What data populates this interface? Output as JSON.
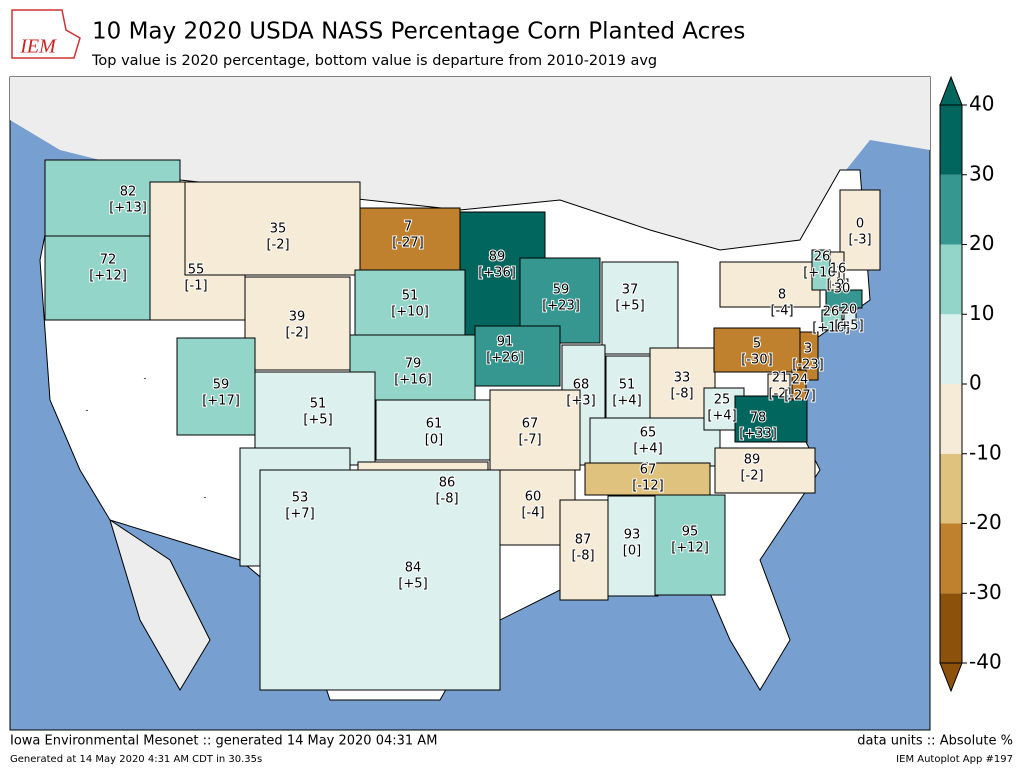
{
  "header": {
    "logo": "IEM",
    "title": "10 May 2020 USDA NASS Percentage Corn Planted Acres",
    "subtitle": "Top value is 2020 percentage, bottom value is departure from 2010-2019 avg"
  },
  "states": [
    {
      "value": 82,
      "departure": 13,
      "departure_label": "[+13]"
    },
    {
      "value": 72,
      "departure": 12,
      "departure_label": "[+12]"
    },
    {
      "value": 55,
      "departure": -1,
      "departure_label": "[-1]"
    },
    {
      "value": 35,
      "departure": -2,
      "departure_label": "[-2]"
    },
    {
      "value": 7,
      "departure": -27,
      "departure_label": "[-27]"
    },
    {
      "value": 89,
      "departure": 36,
      "departure_label": "[+36]"
    },
    {
      "value": 59,
      "departure": 23,
      "departure_label": "[+23]"
    },
    {
      "value": 37,
      "departure": 5,
      "departure_label": "[+5]"
    },
    {
      "value": 39,
      "departure": -2,
      "departure_label": "[-2]"
    },
    {
      "value": 51,
      "departure": 10,
      "departure_label": "[+10]"
    },
    {
      "value": 79,
      "departure": 16,
      "departure_label": "[+16]"
    },
    {
      "value": 91,
      "departure": 26,
      "departure_label": "[+26]"
    },
    {
      "value": 68,
      "departure": 3,
      "departure_label": "[+3]"
    },
    {
      "value": 51,
      "departure": 4,
      "departure_label": "[+4]"
    },
    {
      "value": 33,
      "departure": -8,
      "departure_label": "[-8]"
    },
    {
      "value": 8,
      "departure": -4,
      "departure_label": "[-4]"
    },
    {
      "value": 5,
      "departure": -30,
      "departure_label": "[-30]"
    },
    {
      "value": 59,
      "departure": 17,
      "departure_label": "[+17]"
    },
    {
      "value": 51,
      "departure": 5,
      "departure_label": "[+5]"
    },
    {
      "value": 61,
      "departure": 0,
      "departure_label": "[0]"
    },
    {
      "value": 67,
      "departure": -7,
      "departure_label": "[-7]"
    },
    {
      "value": 65,
      "departure": 4,
      "departure_label": "[+4]"
    },
    {
      "value": 25,
      "departure": 4,
      "departure_label": "[+4]"
    },
    {
      "value": 78,
      "departure": 33,
      "departure_label": "[+33]"
    },
    {
      "value": 3,
      "departure": -23,
      "departure_label": "[-23]"
    },
    {
      "value": 21,
      "departure": -2,
      "departure_label": "[-2]"
    },
    {
      "value": 24,
      "departure": -27,
      "departure_label": "[-27]"
    },
    {
      "value": 89,
      "departure": -2,
      "departure_label": "[-2]"
    },
    {
      "value": 67,
      "departure": -12,
      "departure_label": "[-12]"
    },
    {
      "value": 60,
      "departure": -4,
      "departure_label": "[-4]"
    },
    {
      "value": 86,
      "departure": -8,
      "departure_label": "[-8]"
    },
    {
      "value": 53,
      "departure": 7,
      "departure_label": "[+7]"
    },
    {
      "value": 84,
      "departure": 5,
      "departure_label": "[+5]"
    },
    {
      "value": 87,
      "departure": -8,
      "departure_label": "[-8]"
    },
    {
      "value": 93,
      "departure": 0,
      "departure_label": "[0]"
    },
    {
      "value": 95,
      "departure": 12,
      "departure_label": "[+12]"
    },
    {
      "value": 0,
      "departure": -3,
      "departure_label": "[-3]"
    },
    {
      "value": 26,
      "departure": 16,
      "departure_label": "[+16]"
    },
    {
      "value": 16,
      "departure": -9,
      "departure_label": "[-9]"
    },
    {
      "value": 30
    },
    {
      "value": 26,
      "departure": 16,
      "departure_label": "[+16]"
    },
    {
      "value": 20,
      "departure": 5,
      "departure_label": "[+5]"
    }
  ],
  "no_data_label": "-",
  "colorbar": {
    "levels": [
      -40,
      -30,
      -20,
      -10,
      0,
      10,
      20,
      30,
      40
    ],
    "colors": [
      "#8c510a",
      "#bf812d",
      "#dfc27d",
      "#f6ebd7",
      "#dcf1ee",
      "#94d5c9",
      "#35978f",
      "#01665e"
    ],
    "ticks": [
      40,
      30,
      20,
      10,
      0,
      -10,
      -20,
      -30,
      -40
    ]
  },
  "footer": {
    "left": "Iowa Environmental Mesonet :: generated 14 May 2020 04:31 AM",
    "right": "data units :: Absolute %",
    "left_small": "Generated at 14 May 2020 4:31 AM CDT in 30.35s",
    "right_small": "IEM Autoplot App #197"
  }
}
